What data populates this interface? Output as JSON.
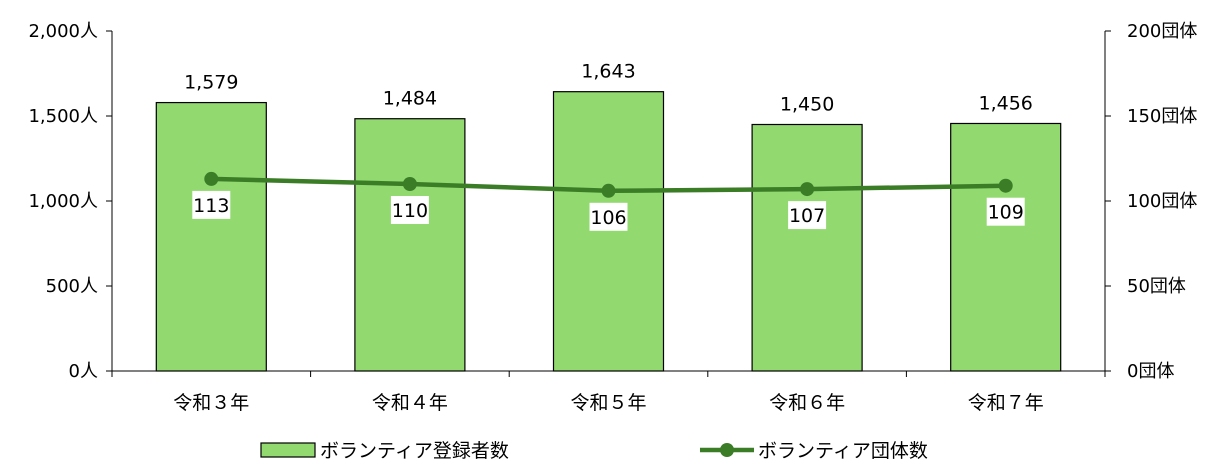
{
  "chart_data": {
    "type": "bar",
    "categories": [
      "令和３年",
      "令和４年",
      "令和５年",
      "令和６年",
      "令和７年"
    ],
    "series": [
      {
        "name": "ボランティア登録者数",
        "type": "bar",
        "axis": "left",
        "values": [
          1579,
          1484,
          1643,
          1450,
          1456
        ],
        "labels": [
          "1,579",
          "1,484",
          "1,643",
          "1,450",
          "1,456"
        ],
        "color": "#92d970"
      },
      {
        "name": "ボランティア団体数",
        "type": "line",
        "axis": "right",
        "values": [
          113,
          110,
          106,
          107,
          109
        ],
        "labels": [
          "113",
          "110",
          "106",
          "107",
          "109"
        ],
        "color": "#3a7d26"
      }
    ],
    "y_left": {
      "ylim": [
        0,
        2000
      ],
      "ticks": [
        0,
        500,
        1000,
        1500,
        2000
      ],
      "tick_labels": [
        "0人",
        "500人",
        "1,000人",
        "1,500人",
        "2,000人"
      ]
    },
    "y_right": {
      "ylim": [
        0,
        200
      ],
      "ticks": [
        0,
        50,
        100,
        150,
        200
      ],
      "tick_labels": [
        "0団体",
        "50団体",
        "100団体",
        "150団体",
        "200団体"
      ]
    },
    "grid": false,
    "legend": "bottom",
    "title": "",
    "xlabel": ""
  }
}
